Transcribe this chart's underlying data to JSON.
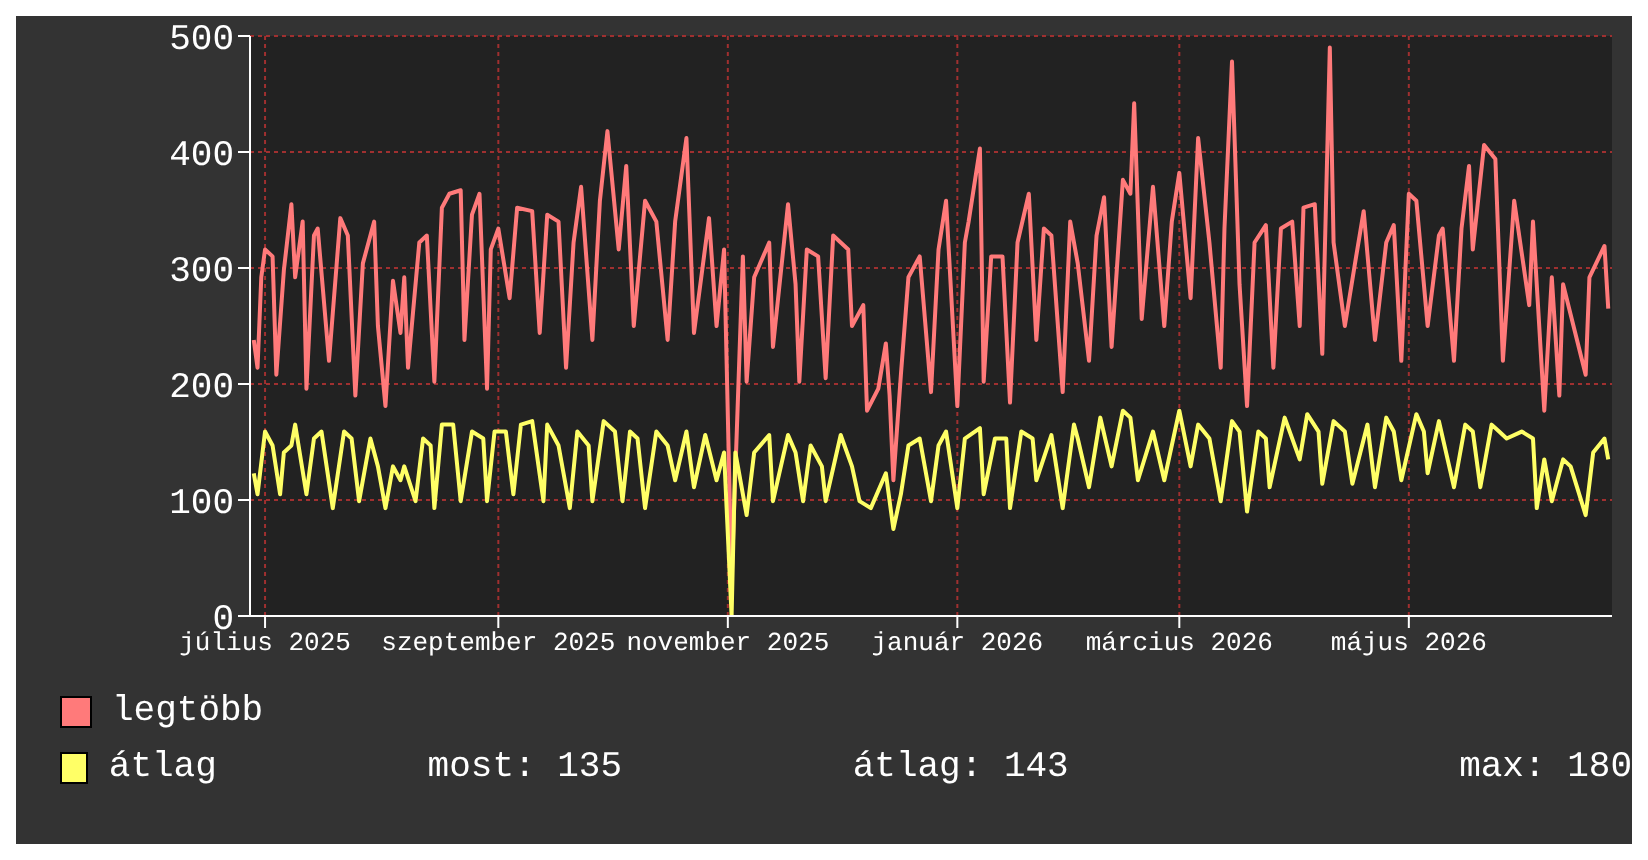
{
  "chart_data": {
    "type": "line",
    "xlim": [
      "2025-06-27",
      "2026-06-24"
    ],
    "xticks": [
      {
        "value": "2025-07-01",
        "label": "július 2025"
      },
      {
        "value": "2025-09-01",
        "label": "szeptember 2025"
      },
      {
        "value": "2025-11-01",
        "label": "november 2025"
      },
      {
        "value": "2026-01-01",
        "label": "január 2026"
      },
      {
        "value": "2026-03-01",
        "label": "március 2026"
      },
      {
        "value": "2026-05-01",
        "label": "május 2026"
      }
    ],
    "ylim": [
      0,
      500
    ],
    "yticks": [
      0,
      100,
      200,
      300,
      400,
      500
    ],
    "grid": true,
    "legend": "bottom",
    "marker": "none",
    "line_style": "solid",
    "annotations": [
      "most: 135",
      "átlag: 143",
      "max: 180"
    ],
    "series": [
      {
        "name": "legtöbb",
        "color": "#ff7a7a",
        "x": [
          "2025-06-28",
          "2025-06-29",
          "2025-06-30",
          "2025-07-01",
          "2025-07-03",
          "2025-07-04",
          "2025-07-06",
          "2025-07-08",
          "2025-07-09",
          "2025-07-11",
          "2025-07-12",
          "2025-07-14",
          "2025-07-15",
          "2025-07-18",
          "2025-07-21",
          "2025-07-23",
          "2025-07-25",
          "2025-07-27",
          "2025-07-30",
          "2025-07-31",
          "2025-08-02",
          "2025-08-04",
          "2025-08-06",
          "2025-08-07",
          "2025-08-08",
          "2025-08-11",
          "2025-08-13",
          "2025-08-15",
          "2025-08-17",
          "2025-08-19",
          "2025-08-22",
          "2025-08-23",
          "2025-08-25",
          "2025-08-27",
          "2025-08-29",
          "2025-08-30",
          "2025-09-01",
          "2025-09-04",
          "2025-09-06",
          "2025-09-10",
          "2025-09-12",
          "2025-09-14",
          "2025-09-17",
          "2025-09-19",
          "2025-09-21",
          "2025-09-23",
          "2025-09-26",
          "2025-09-28",
          "2025-09-30",
          "2025-10-03",
          "2025-10-05",
          "2025-10-07",
          "2025-10-10",
          "2025-10-13",
          "2025-10-16",
          "2025-10-18",
          "2025-10-21",
          "2025-10-23",
          "2025-10-27",
          "2025-10-29",
          "2025-10-31",
          "2025-11-02",
          "2025-11-05",
          "2025-11-06",
          "2025-11-08",
          "2025-11-12",
          "2025-11-13",
          "2025-11-17",
          "2025-11-19",
          "2025-11-20",
          "2025-11-22",
          "2025-11-25",
          "2025-11-27",
          "2025-11-29",
          "2025-12-03",
          "2025-12-04",
          "2025-12-07",
          "2025-12-08",
          "2025-12-11",
          "2025-12-13",
          "2025-12-14",
          "2025-12-15",
          "2025-12-17",
          "2025-12-19",
          "2025-12-22",
          "2025-12-25",
          "2025-12-27",
          "2025-12-29",
          "2026-01-01",
          "2026-01-03",
          "2026-01-04",
          "2026-01-07",
          "2026-01-08",
          "2026-01-10",
          "2026-01-13",
          "2026-01-15",
          "2026-01-17",
          "2026-01-20",
          "2026-01-22",
          "2026-01-24",
          "2026-01-26",
          "2026-01-29",
          "2026-01-31",
          "2026-02-02",
          "2026-02-05",
          "2026-02-07",
          "2026-02-09",
          "2026-02-11",
          "2026-02-14",
          "2026-02-16",
          "2026-02-17",
          "2026-02-19",
          "2026-02-22",
          "2026-02-25",
          "2026-02-27",
          "2026-03-01",
          "2026-03-04",
          "2026-03-06",
          "2026-03-09",
          "2026-03-12",
          "2026-03-13",
          "2026-03-15",
          "2026-03-17",
          "2026-03-19",
          "2026-03-21",
          "2026-03-24",
          "2026-03-26",
          "2026-03-28",
          "2026-03-31",
          "2026-04-02",
          "2026-04-03",
          "2026-04-06",
          "2026-04-08",
          "2026-04-10",
          "2026-04-11",
          "2026-04-14",
          "2026-04-17",
          "2026-04-19",
          "2026-04-22",
          "2026-04-25",
          "2026-04-27",
          "2026-04-29",
          "2026-05-01",
          "2026-05-03",
          "2026-05-06",
          "2026-05-09",
          "2026-05-10",
          "2026-05-13",
          "2026-05-15",
          "2026-05-17",
          "2026-05-18",
          "2026-05-21",
          "2026-05-24",
          "2026-05-26",
          "2026-05-29",
          "2026-06-02",
          "2026-06-03",
          "2026-06-06",
          "2026-06-08",
          "2026-06-10",
          "2026-06-11",
          "2026-06-17",
          "2026-06-18",
          "2026-06-22",
          "2026-06-23"
        ],
        "values": [
          238,
          214,
          292,
          316,
          310,
          208,
          298,
          355,
          292,
          340,
          196,
          328,
          334,
          220,
          343,
          328,
          190,
          304,
          340,
          250,
          181,
          289,
          244,
          292,
          214,
          322,
          328,
          202,
          352,
          364,
          367,
          238,
          346,
          364,
          196,
          316,
          334,
          274,
          352,
          349,
          244,
          346,
          340,
          214,
          322,
          370,
          238,
          358,
          418,
          316,
          388,
          250,
          358,
          340,
          238,
          340,
          412,
          244,
          343,
          250,
          316,
          30,
          310,
          202,
          292,
          322,
          232,
          355,
          286,
          202,
          316,
          310,
          205,
          328,
          316,
          250,
          268,
          177,
          196,
          235,
          190,
          117,
          208,
          292,
          310,
          193,
          316,
          358,
          181,
          322,
          340,
          403,
          202,
          310,
          310,
          184,
          322,
          364,
          238,
          334,
          328,
          193,
          340,
          304,
          220,
          328,
          361,
          232,
          376,
          364,
          442,
          256,
          370,
          250,
          340,
          382,
          274,
          412,
          322,
          214,
          334,
          478,
          286,
          181,
          322,
          337,
          214,
          334,
          340,
          250,
          352,
          355,
          226,
          490,
          322,
          250,
          310,
          349,
          238,
          322,
          337,
          220,
          364,
          358,
          250,
          328,
          334,
          220,
          334,
          388,
          316,
          406,
          394,
          220,
          358,
          268,
          340,
          177,
          292,
          190,
          286,
          208,
          292,
          319,
          265
        ]
      },
      {
        "name": "átlag",
        "color": "#ffff66",
        "x": [
          "2025-06-28",
          "2025-06-29",
          "2025-07-01",
          "2025-07-03",
          "2025-07-05",
          "2025-07-06",
          "2025-07-08",
          "2025-07-09",
          "2025-07-12",
          "2025-07-14",
          "2025-07-16",
          "2025-07-19",
          "2025-07-22",
          "2025-07-24",
          "2025-07-26",
          "2025-07-29",
          "2025-07-31",
          "2025-08-02",
          "2025-08-04",
          "2025-08-06",
          "2025-08-07",
          "2025-08-10",
          "2025-08-12",
          "2025-08-14",
          "2025-08-15",
          "2025-08-17",
          "2025-08-20",
          "2025-08-22",
          "2025-08-25",
          "2025-08-28",
          "2025-08-29",
          "2025-08-31",
          "2025-09-03",
          "2025-09-05",
          "2025-09-07",
          "2025-09-10",
          "2025-09-13",
          "2025-09-14",
          "2025-09-17",
          "2025-09-20",
          "2025-09-22",
          "2025-09-25",
          "2025-09-26",
          "2025-09-29",
          "2025-10-02",
          "2025-10-04",
          "2025-10-06",
          "2025-10-08",
          "2025-10-10",
          "2025-10-13",
          "2025-10-16",
          "2025-10-18",
          "2025-10-21",
          "2025-10-23",
          "2025-10-26",
          "2025-10-29",
          "2025-10-31",
          "2025-11-02",
          "2025-11-03",
          "2025-11-06",
          "2025-11-08",
          "2025-11-12",
          "2025-11-13",
          "2025-11-17",
          "2025-11-19",
          "2025-11-21",
          "2025-11-23",
          "2025-11-26",
          "2025-11-27",
          "2025-12-01",
          "2025-12-04",
          "2025-12-06",
          "2025-12-09",
          "2025-12-13",
          "2025-12-15",
          "2025-12-17",
          "2025-12-19",
          "2025-12-22",
          "2025-12-25",
          "2025-12-27",
          "2025-12-29",
          "2026-01-01",
          "2026-01-03",
          "2026-01-07",
          "2026-01-08",
          "2026-01-11",
          "2026-01-14",
          "2026-01-15",
          "2026-01-18",
          "2026-01-21",
          "2026-01-22",
          "2026-01-26",
          "2026-01-29",
          "2026-02-01",
          "2026-02-02",
          "2026-02-05",
          "2026-02-08",
          "2026-02-11",
          "2026-02-14",
          "2026-02-16",
          "2026-02-18",
          "2026-02-22",
          "2026-02-25",
          "2026-03-01",
          "2026-03-04",
          "2026-03-06",
          "2026-03-09",
          "2026-03-12",
          "2026-03-15",
          "2026-03-17",
          "2026-03-19",
          "2026-03-22",
          "2026-03-24",
          "2026-03-25",
          "2026-03-29",
          "2026-04-02",
          "2026-04-04",
          "2026-04-07",
          "2026-04-08",
          "2026-04-11",
          "2026-04-14",
          "2026-04-16",
          "2026-04-20",
          "2026-04-22",
          "2026-04-25",
          "2026-04-27",
          "2026-04-29",
          "2026-05-03",
          "2026-05-05",
          "2026-05-06",
          "2026-05-09",
          "2026-05-13",
          "2026-05-16",
          "2026-05-18",
          "2026-05-20",
          "2026-05-23",
          "2026-05-25",
          "2026-05-27",
          "2026-05-31",
          "2026-06-03",
          "2026-06-04",
          "2026-06-06",
          "2026-06-08",
          "2026-06-11",
          "2026-06-13",
          "2026-06-17",
          "2026-06-19",
          "2026-06-22",
          "2026-06-23"
        ],
        "values": [
          123,
          105,
          159,
          147,
          105,
          141,
          147,
          165,
          105,
          153,
          159,
          93,
          159,
          153,
          99,
          153,
          129,
          93,
          129,
          117,
          129,
          99,
          153,
          147,
          93,
          165,
          165,
          99,
          159,
          153,
          99,
          159,
          159,
          105,
          165,
          168,
          99,
          165,
          147,
          93,
          159,
          147,
          99,
          168,
          159,
          99,
          159,
          153,
          93,
          159,
          147,
          117,
          159,
          111,
          156,
          117,
          141,
          0,
          141,
          87,
          141,
          156,
          99,
          156,
          141,
          99,
          147,
          129,
          99,
          156,
          129,
          99,
          93,
          123,
          75,
          105,
          147,
          153,
          99,
          147,
          159,
          93,
          153,
          162,
          105,
          153,
          153,
          93,
          159,
          153,
          117,
          156,
          93,
          165,
          153,
          111,
          171,
          129,
          177,
          171,
          117,
          159,
          117,
          177,
          129,
          165,
          153,
          99,
          168,
          159,
          90,
          159,
          153,
          111,
          171,
          135,
          174,
          159,
          114,
          168,
          159,
          114,
          165,
          111,
          171,
          159,
          117,
          174,
          159,
          123,
          168,
          111,
          165,
          159,
          111,
          165,
          159,
          153,
          159,
          153,
          93,
          135,
          99,
          135,
          129,
          87,
          141,
          153,
          135
        ]
      }
    ]
  }
}
